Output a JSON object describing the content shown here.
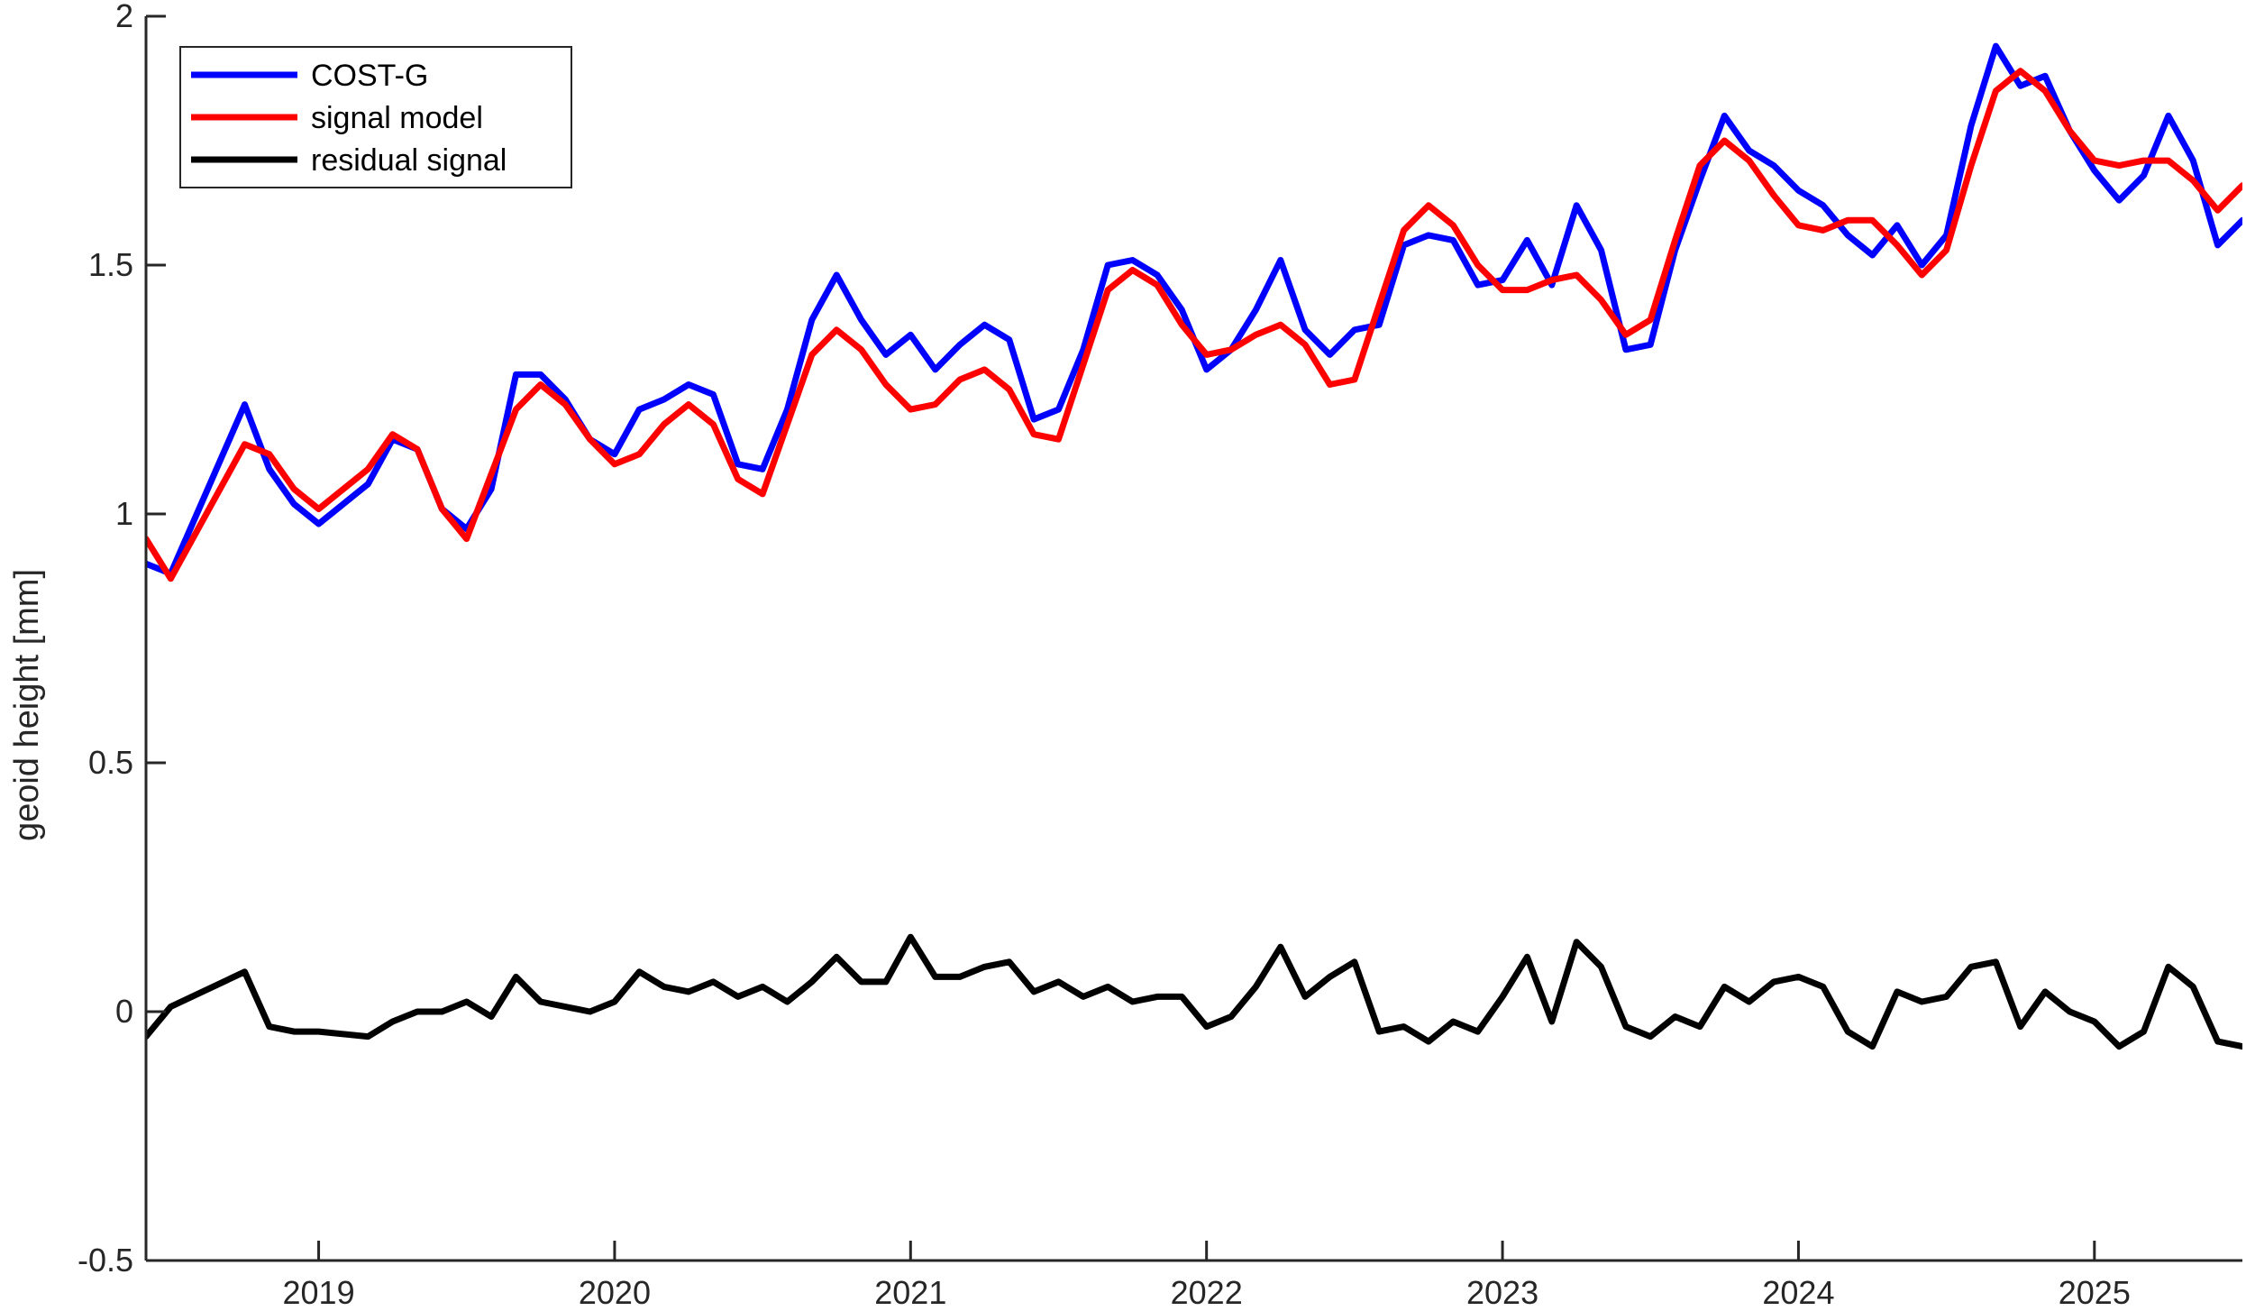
{
  "chart_data": {
    "type": "line",
    "title": "",
    "xlabel": "",
    "ylabel": "geoid height [mm]",
    "xlim": [
      "2018-06",
      "2025-07"
    ],
    "ylim": [
      -0.5,
      2
    ],
    "yticks": [
      -0.5,
      0,
      0.5,
      1,
      1.5,
      2
    ],
    "ytick_labels": [
      "-0.5",
      "0",
      "0.5",
      "1",
      "1.5",
      "2"
    ],
    "xticks": [
      "2019-01",
      "2020-01",
      "2021-01",
      "2022-01",
      "2023-01",
      "2024-01",
      "2025-01"
    ],
    "xtick_labels": [
      "2019",
      "2020",
      "2021",
      "2022",
      "2023",
      "2024",
      "2025"
    ],
    "grid": false,
    "legend_position": "top-left",
    "x": [
      "2018-06",
      "2018-07",
      "2018-10",
      "2018-11",
      "2018-12",
      "2019-01",
      "2019-03",
      "2019-04",
      "2019-05",
      "2019-06",
      "2019-07",
      "2019-08",
      "2019-09",
      "2019-10",
      "2019-11",
      "2019-12",
      "2020-01",
      "2020-02",
      "2020-03",
      "2020-04",
      "2020-05",
      "2020-06",
      "2020-07",
      "2020-08",
      "2020-09",
      "2020-10",
      "2020-11",
      "2020-12",
      "2021-01",
      "2021-02",
      "2021-03",
      "2021-04",
      "2021-05",
      "2021-06",
      "2021-07",
      "2021-08",
      "2021-09",
      "2021-10",
      "2021-11",
      "2021-12",
      "2022-01",
      "2022-02",
      "2022-03",
      "2022-04",
      "2022-05",
      "2022-06",
      "2022-07",
      "2022-08",
      "2022-09",
      "2022-10",
      "2022-11",
      "2022-12",
      "2023-01",
      "2023-02",
      "2023-03",
      "2023-04",
      "2023-05",
      "2023-06",
      "2023-07",
      "2023-08",
      "2023-09",
      "2023-10",
      "2023-11",
      "2023-12",
      "2024-01",
      "2024-02",
      "2024-03",
      "2024-04",
      "2024-05",
      "2024-06",
      "2024-07",
      "2024-08",
      "2024-09",
      "2024-10",
      "2024-11",
      "2024-12",
      "2025-01",
      "2025-02",
      "2025-03",
      "2025-04",
      "2025-05",
      "2025-06",
      "2025-07"
    ],
    "series": [
      {
        "name": "COST-G",
        "color": "#0000ff",
        "values": [
          0.9,
          0.88,
          1.22,
          1.09,
          1.02,
          0.98,
          1.06,
          1.15,
          1.13,
          1.01,
          0.97,
          1.05,
          1.28,
          1.28,
          1.23,
          1.15,
          1.12,
          1.21,
          1.23,
          1.26,
          1.24,
          1.1,
          1.09,
          1.21,
          1.39,
          1.48,
          1.39,
          1.32,
          1.36,
          1.29,
          1.34,
          1.38,
          1.35,
          1.19,
          1.21,
          1.33,
          1.5,
          1.51,
          1.48,
          1.41,
          1.29,
          1.33,
          1.41,
          1.51,
          1.37,
          1.32,
          1.37,
          1.38,
          1.54,
          1.56,
          1.55,
          1.46,
          1.47,
          1.55,
          1.46,
          1.62,
          1.53,
          1.33,
          1.34,
          1.53,
          1.67,
          1.8,
          1.73,
          1.7,
          1.65,
          1.62,
          1.56,
          1.52,
          1.58,
          1.5,
          1.56,
          1.78,
          1.94,
          1.86,
          1.88,
          1.77,
          1.69,
          1.63,
          1.68,
          1.8,
          1.71,
          1.54,
          1.59
        ]
      },
      {
        "name": "signal model",
        "color": "#ff0000",
        "values": [
          0.95,
          0.87,
          1.14,
          1.12,
          1.05,
          1.01,
          1.09,
          1.16,
          1.13,
          1.01,
          0.95,
          1.08,
          1.21,
          1.26,
          1.22,
          1.15,
          1.1,
          1.12,
          1.18,
          1.22,
          1.18,
          1.07,
          1.04,
          1.18,
          1.32,
          1.37,
          1.33,
          1.26,
          1.21,
          1.22,
          1.27,
          1.29,
          1.25,
          1.16,
          1.15,
          1.3,
          1.45,
          1.49,
          1.46,
          1.38,
          1.32,
          1.33,
          1.36,
          1.38,
          1.34,
          1.26,
          1.27,
          1.42,
          1.57,
          1.62,
          1.58,
          1.5,
          1.45,
          1.45,
          1.47,
          1.48,
          1.43,
          1.36,
          1.39,
          1.55,
          1.7,
          1.75,
          1.71,
          1.64,
          1.58,
          1.57,
          1.59,
          1.59,
          1.54,
          1.48,
          1.53,
          1.7,
          1.85,
          1.89,
          1.85,
          1.77,
          1.71,
          1.7,
          1.71,
          1.71,
          1.67,
          1.61,
          1.66
        ]
      },
      {
        "name": "residual signal",
        "color": "#000000",
        "values": [
          -0.05,
          0.01,
          0.08,
          -0.03,
          -0.04,
          -0.04,
          -0.05,
          -0.02,
          0.0,
          0.0,
          0.02,
          -0.01,
          0.07,
          0.02,
          0.01,
          0.0,
          0.02,
          0.08,
          0.05,
          0.04,
          0.06,
          0.03,
          0.05,
          0.02,
          0.06,
          0.11,
          0.06,
          0.06,
          0.15,
          0.07,
          0.07,
          0.09,
          0.1,
          0.04,
          0.06,
          0.03,
          0.05,
          0.02,
          0.03,
          0.03,
          -0.03,
          -0.01,
          0.05,
          0.13,
          0.03,
          0.07,
          0.1,
          -0.04,
          -0.03,
          -0.06,
          -0.02,
          -0.04,
          0.03,
          0.11,
          -0.02,
          0.14,
          0.09,
          -0.03,
          -0.05,
          -0.01,
          -0.03,
          0.05,
          0.02,
          0.06,
          0.07,
          0.05,
          -0.04,
          -0.07,
          0.04,
          0.02,
          0.03,
          0.09,
          0.1,
          -0.03,
          0.04,
          0.0,
          -0.02,
          -0.07,
          -0.04,
          0.09,
          0.05,
          -0.06,
          -0.07
        ]
      }
    ]
  }
}
